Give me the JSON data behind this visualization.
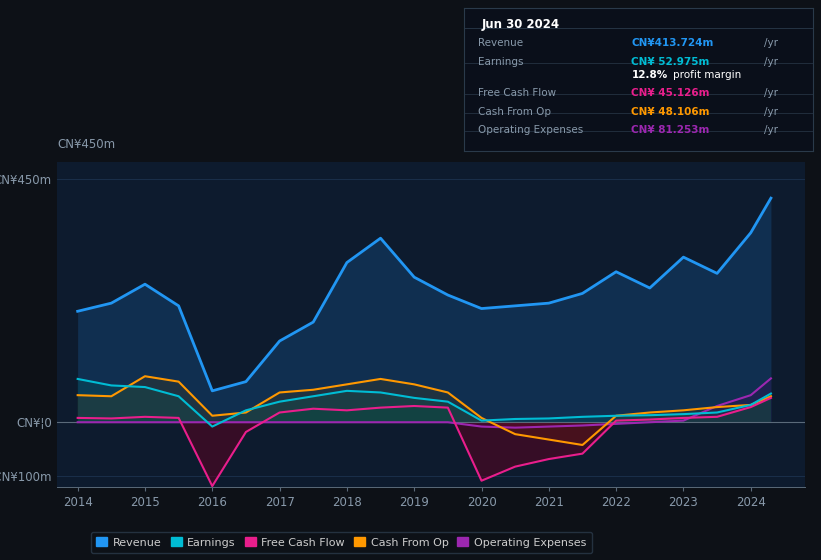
{
  "bg_color": "#0d1117",
  "plot_bg_color": "#0d1b2e",
  "grid_color": "#1a2f4a",
  "years": [
    2014.0,
    2014.5,
    2015.0,
    2015.5,
    2016.0,
    2016.5,
    2017.0,
    2017.5,
    2018.0,
    2018.5,
    2019.0,
    2019.5,
    2020.0,
    2020.5,
    2021.0,
    2021.5,
    2022.0,
    2022.5,
    2023.0,
    2023.5,
    2024.0,
    2024.3
  ],
  "revenue": [
    205,
    220,
    255,
    215,
    58,
    75,
    150,
    185,
    295,
    340,
    268,
    235,
    210,
    215,
    220,
    238,
    278,
    248,
    305,
    275,
    350,
    414
  ],
  "earnings": [
    80,
    68,
    65,
    48,
    -8,
    22,
    38,
    48,
    58,
    55,
    45,
    38,
    3,
    6,
    7,
    10,
    12,
    13,
    15,
    18,
    32,
    53
  ],
  "free_cash_flow": [
    8,
    7,
    10,
    8,
    -118,
    -18,
    18,
    25,
    22,
    27,
    30,
    27,
    -108,
    -82,
    -68,
    -58,
    3,
    5,
    8,
    10,
    28,
    45
  ],
  "cash_from_op": [
    50,
    48,
    85,
    75,
    12,
    18,
    55,
    60,
    70,
    80,
    70,
    55,
    8,
    -22,
    -32,
    -42,
    12,
    18,
    22,
    28,
    32,
    48
  ],
  "operating_expenses": [
    0,
    0,
    0,
    0,
    0,
    0,
    0,
    0,
    0,
    0,
    0,
    0,
    -8,
    -10,
    -8,
    -6,
    -3,
    0,
    3,
    30,
    50,
    81
  ],
  "ylim": [
    -120,
    480
  ],
  "yticks": [
    -100,
    0,
    450
  ],
  "ytick_labels": [
    "-CN¥100m",
    "CN¥¦0",
    "CN¥450m"
  ],
  "xlim": [
    2013.7,
    2024.8
  ],
  "xticks": [
    2014,
    2015,
    2016,
    2017,
    2018,
    2019,
    2020,
    2021,
    2022,
    2023,
    2024
  ],
  "legend": [
    {
      "label": "Revenue",
      "color": "#2196f3"
    },
    {
      "label": "Earnings",
      "color": "#00bcd4"
    },
    {
      "label": "Free Cash Flow",
      "color": "#e91e8c"
    },
    {
      "label": "Cash From Op",
      "color": "#ff9800"
    },
    {
      "label": "Operating Expenses",
      "color": "#9c27b0"
    }
  ],
  "info_box": {
    "date": "Jun 30 2024",
    "rows": [
      {
        "label": "Revenue",
        "value": "CN¥413.724m",
        "suffix": "/yr",
        "value_color": "#2196f3"
      },
      {
        "label": "Earnings",
        "value": "CN¥ 52.975m",
        "suffix": "/yr",
        "value_color": "#00bcd4"
      },
      {
        "label": "",
        "value": "12.8%",
        "suffix": " profit margin",
        "value_color": "#ffffff"
      },
      {
        "label": "Free Cash Flow",
        "value": "CN¥ 45.126m",
        "suffix": "/yr",
        "value_color": "#e91e8c"
      },
      {
        "label": "Cash From Op",
        "value": "CN¥ 48.106m",
        "suffix": "/yr",
        "value_color": "#ff9800"
      },
      {
        "label": "Operating Expenses",
        "value": "CN¥ 81.253m",
        "suffix": "/yr",
        "value_color": "#9c27b0"
      }
    ]
  }
}
